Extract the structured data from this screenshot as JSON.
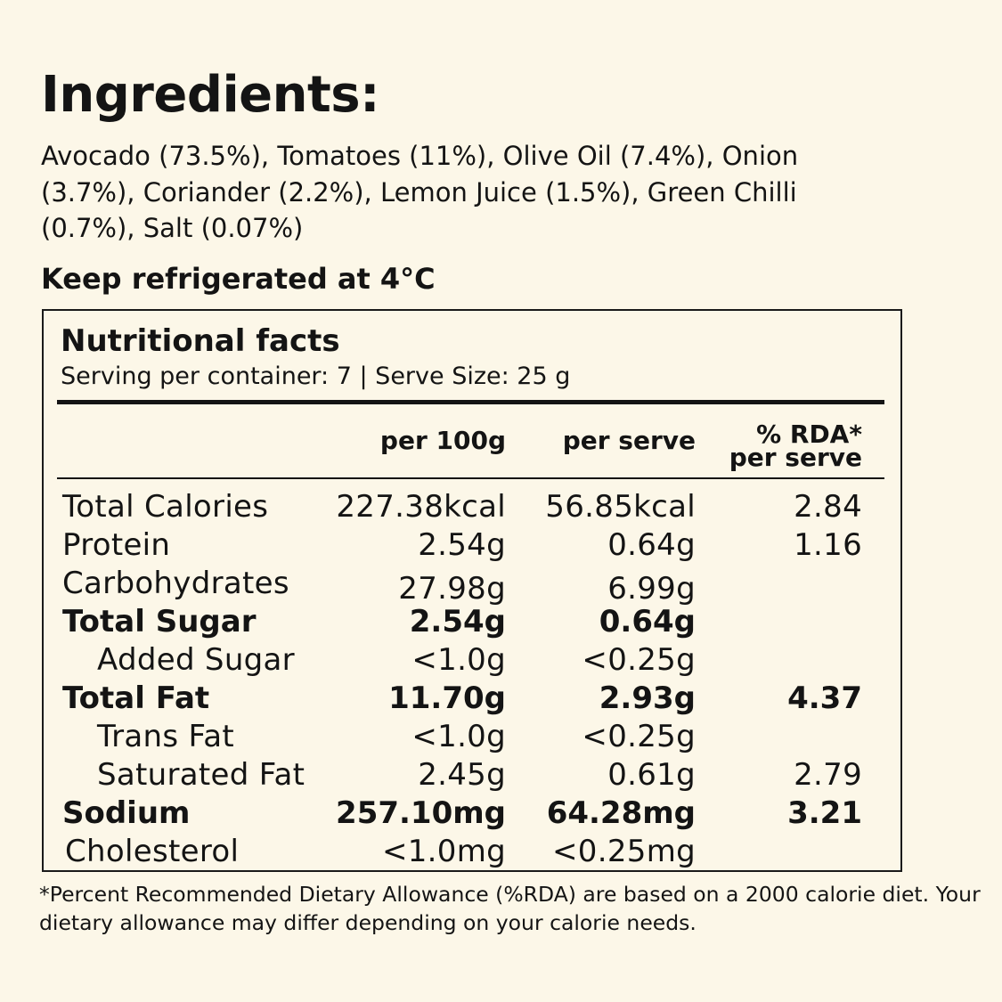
{
  "ingredients": {
    "heading": "Ingredients:",
    "text": "Avocado (73.5%), Tomatoes (11%), Olive Oil (7.4%), Onion (3.7%), Coriander (2.2%), Lemon Juice (1.5%), Green Chilli (0.7%), Salt (0.07%)"
  },
  "storage": "Keep refrigerated at 4°C",
  "nutrition": {
    "title": "Nutritional facts",
    "serving": "Serving per container: 7 | Serve Size: 25 g",
    "columns": {
      "per_100g": "per 100g",
      "per_serve": "per serve",
      "rda_line1": "% RDA*",
      "rda_line2": "per serve"
    },
    "rows": [
      {
        "label": "Total Calories",
        "per_100g": "227.38kcal",
        "per_serve": "56.85kcal",
        "rda": "2.84"
      },
      {
        "label": "Protein",
        "per_100g": "2.54g",
        "per_serve": "0.64g",
        "rda": "1.16"
      },
      {
        "label": "Carbohydrates",
        "per_100g": "27.98g",
        "per_serve": "6.99g",
        "rda": ""
      },
      {
        "label": "Total Sugar",
        "per_100g": "2.54g",
        "per_serve": "0.64g",
        "rda": ""
      },
      {
        "label": "Added Sugar",
        "per_100g": "<1.0g",
        "per_serve": "<0.25g",
        "rda": ""
      },
      {
        "label": "Total Fat",
        "per_100g": "11.70g",
        "per_serve": "2.93g",
        "rda": "4.37"
      },
      {
        "label": "Trans Fat",
        "per_100g": "<1.0g",
        "per_serve": "<0.25g",
        "rda": ""
      },
      {
        "label": "Saturated Fat",
        "per_100g": "2.45g",
        "per_serve": "0.61g",
        "rda": "2.79"
      },
      {
        "label": "Sodium",
        "per_100g": "257.10mg",
        "per_serve": "64.28mg",
        "rda": "3.21"
      },
      {
        "label": "Cholesterol",
        "per_100g": "<1.0mg",
        "per_serve": "<0.25mg",
        "rda": ""
      }
    ]
  },
  "footnote": "*Percent Recommended Dietary Allowance (%RDA) are based on a 2000 calorie diet. Your dietary allowance may differ depending on your calorie needs."
}
